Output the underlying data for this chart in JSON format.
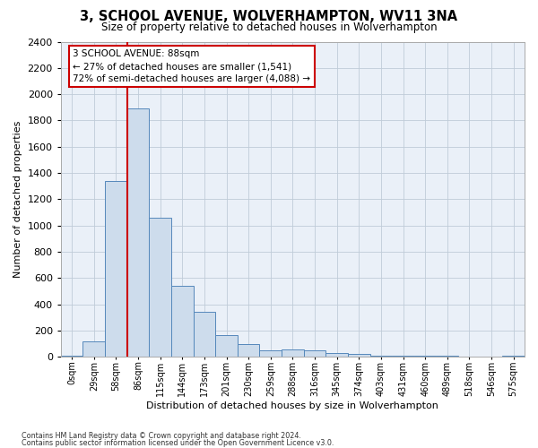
{
  "title": "3, SCHOOL AVENUE, WOLVERHAMPTON, WV11 3NA",
  "subtitle": "Size of property relative to detached houses in Wolverhampton",
  "xlabel": "Distribution of detached houses by size in Wolverhampton",
  "ylabel": "Number of detached properties",
  "footnote1": "Contains HM Land Registry data © Crown copyright and database right 2024.",
  "footnote2": "Contains public sector information licensed under the Open Government Licence v3.0.",
  "annotation_title": "3 SCHOOL AVENUE: 88sqm",
  "annotation_line1": "← 27% of detached houses are smaller (1,541)",
  "annotation_line2": "72% of semi-detached houses are larger (4,088) →",
  "bar_color": "#cddcec",
  "bar_edge_color": "#5588bb",
  "vline_color": "#cc0000",
  "background_color": "#ffffff",
  "plot_bg_color": "#eaf0f8",
  "grid_color": "#c0ccd8",
  "categories": [
    "0sqm",
    "29sqm",
    "58sqm",
    "86sqm",
    "115sqm",
    "144sqm",
    "173sqm",
    "201sqm",
    "230sqm",
    "259sqm",
    "288sqm",
    "316sqm",
    "345sqm",
    "374sqm",
    "403sqm",
    "431sqm",
    "460sqm",
    "489sqm",
    "518sqm",
    "546sqm",
    "575sqm"
  ],
  "values": [
    8,
    120,
    1340,
    1890,
    1060,
    540,
    340,
    165,
    100,
    50,
    55,
    50,
    30,
    25,
    10,
    10,
    10,
    10,
    0,
    0,
    10
  ],
  "ylim": [
    0,
    2400
  ],
  "yticks": [
    0,
    200,
    400,
    600,
    800,
    1000,
    1200,
    1400,
    1600,
    1800,
    2000,
    2200,
    2400
  ],
  "vline_index": 3
}
